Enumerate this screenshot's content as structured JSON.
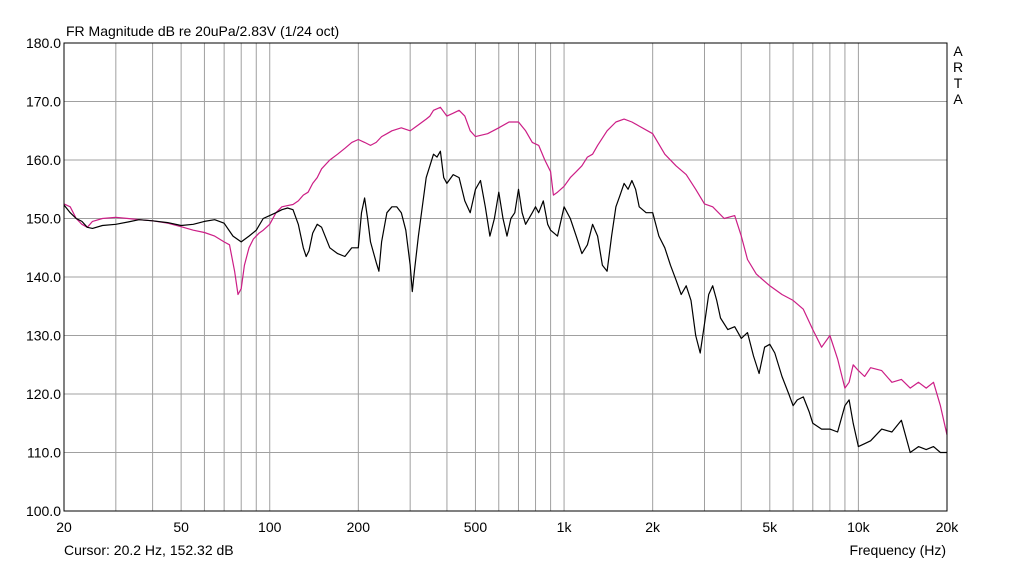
{
  "app": {
    "title": "FR Magnitude dB re 20uPa/2.83V (1/24 oct)",
    "watermark": [
      "A",
      "R",
      "T",
      "A"
    ],
    "cursor_readout": "Cursor: 20.2 Hz, 152.32 dB",
    "x_axis_label": "Frequency (Hz)"
  },
  "colors": {
    "background": "#ffffff",
    "grid": "#a0a0a0",
    "frame": "#000000",
    "series_black": "#000000",
    "series_magenta": "#cc1e86"
  },
  "chart_data": {
    "type": "line",
    "title": "FR Magnitude dB re 20uPa/2.83V (1/24 oct)",
    "xlabel": "Frequency (Hz)",
    "ylabel": "",
    "xscale": "log",
    "xlim": [
      20,
      20000
    ],
    "ylim": [
      100,
      180
    ],
    "grid": true,
    "x_ticks": [
      20,
      50,
      100,
      200,
      500,
      1000,
      2000,
      5000,
      10000,
      20000
    ],
    "x_tick_labels": [
      "20",
      "50",
      "100",
      "200",
      "500",
      "1k",
      "2k",
      "5k",
      "10k",
      "20k"
    ],
    "y_ticks": [
      100,
      110,
      120,
      130,
      140,
      150,
      160,
      170,
      180
    ],
    "y_tick_labels": [
      "100.0",
      "110.0",
      "120.0",
      "130.0",
      "140.0",
      "150.0",
      "160.0",
      "170.0",
      "180.0"
    ],
    "series": [
      {
        "color": "#cc1e86",
        "points": [
          [
            20,
            152.5
          ],
          [
            21,
            152
          ],
          [
            22,
            150
          ],
          [
            23,
            149
          ],
          [
            24,
            148.5
          ],
          [
            25,
            149.5
          ],
          [
            27,
            150
          ],
          [
            30,
            150.2
          ],
          [
            33,
            150
          ],
          [
            36,
            149.8
          ],
          [
            40,
            149.6
          ],
          [
            45,
            149.2
          ],
          [
            50,
            148.6
          ],
          [
            55,
            148
          ],
          [
            60,
            147.6
          ],
          [
            65,
            147
          ],
          [
            70,
            146
          ],
          [
            73,
            145.5
          ],
          [
            76,
            141
          ],
          [
            78,
            137
          ],
          [
            80,
            138
          ],
          [
            82,
            142
          ],
          [
            85,
            145
          ],
          [
            88,
            146.5
          ],
          [
            92,
            147.5
          ],
          [
            95,
            148
          ],
          [
            100,
            149
          ],
          [
            105,
            151
          ],
          [
            110,
            152
          ],
          [
            115,
            152.2
          ],
          [
            120,
            152.4
          ],
          [
            125,
            153
          ],
          [
            130,
            154
          ],
          [
            135,
            154.5
          ],
          [
            140,
            156
          ],
          [
            145,
            157
          ],
          [
            150,
            158.5
          ],
          [
            160,
            160
          ],
          [
            170,
            161
          ],
          [
            180,
            162
          ],
          [
            190,
            163
          ],
          [
            200,
            163.5
          ],
          [
            210,
            163
          ],
          [
            220,
            162.5
          ],
          [
            230,
            163
          ],
          [
            240,
            164
          ],
          [
            250,
            164.5
          ],
          [
            260,
            165
          ],
          [
            280,
            165.5
          ],
          [
            300,
            165
          ],
          [
            320,
            166
          ],
          [
            330,
            166.5
          ],
          [
            340,
            167
          ],
          [
            350,
            167.5
          ],
          [
            360,
            168.5
          ],
          [
            380,
            169
          ],
          [
            400,
            167.5
          ],
          [
            420,
            168
          ],
          [
            440,
            168.5
          ],
          [
            460,
            167.5
          ],
          [
            480,
            165
          ],
          [
            500,
            164
          ],
          [
            550,
            164.5
          ],
          [
            600,
            165.5
          ],
          [
            650,
            166.5
          ],
          [
            700,
            166.5
          ],
          [
            740,
            165
          ],
          [
            780,
            163
          ],
          [
            820,
            162.5
          ],
          [
            860,
            160
          ],
          [
            900,
            158
          ],
          [
            920,
            154
          ],
          [
            950,
            154.5
          ],
          [
            1000,
            155.5
          ],
          [
            1050,
            157
          ],
          [
            1100,
            158
          ],
          [
            1150,
            159
          ],
          [
            1200,
            160.5
          ],
          [
            1250,
            161
          ],
          [
            1300,
            162.5
          ],
          [
            1400,
            165
          ],
          [
            1500,
            166.5
          ],
          [
            1600,
            167
          ],
          [
            1700,
            166.5
          ],
          [
            1800,
            165.8
          ],
          [
            2000,
            164.5
          ],
          [
            2200,
            161
          ],
          [
            2400,
            159
          ],
          [
            2600,
            157.5
          ],
          [
            2800,
            155
          ],
          [
            3000,
            152.5
          ],
          [
            3200,
            152
          ],
          [
            3500,
            150
          ],
          [
            3800,
            150.5
          ],
          [
            4000,
            147
          ],
          [
            4200,
            143
          ],
          [
            4500,
            140.5
          ],
          [
            5000,
            138.5
          ],
          [
            5500,
            137
          ],
          [
            6000,
            136
          ],
          [
            6500,
            134.5
          ],
          [
            7000,
            131
          ],
          [
            7500,
            128
          ],
          [
            8000,
            130
          ],
          [
            8500,
            126
          ],
          [
            9000,
            121
          ],
          [
            9300,
            122
          ],
          [
            9600,
            125
          ],
          [
            10000,
            124
          ],
          [
            10500,
            123
          ],
          [
            11000,
            124.5
          ],
          [
            12000,
            124
          ],
          [
            13000,
            122
          ],
          [
            14000,
            122.5
          ],
          [
            15000,
            121
          ],
          [
            16000,
            122
          ],
          [
            17000,
            121
          ],
          [
            18000,
            122
          ],
          [
            19000,
            118
          ],
          [
            20000,
            113
          ]
        ]
      },
      {
        "color": "#000000",
        "points": [
          [
            20,
            152.3
          ],
          [
            21,
            151
          ],
          [
            22,
            150
          ],
          [
            23,
            149.5
          ],
          [
            24,
            148.5
          ],
          [
            25,
            148.3
          ],
          [
            27,
            148.8
          ],
          [
            30,
            149
          ],
          [
            33,
            149.4
          ],
          [
            36,
            149.8
          ],
          [
            40,
            149.6
          ],
          [
            45,
            149.3
          ],
          [
            50,
            148.8
          ],
          [
            55,
            149
          ],
          [
            60,
            149.5
          ],
          [
            65,
            149.8
          ],
          [
            70,
            149.2
          ],
          [
            75,
            147
          ],
          [
            80,
            146
          ],
          [
            85,
            147
          ],
          [
            90,
            148
          ],
          [
            95,
            150
          ],
          [
            100,
            150.5
          ],
          [
            105,
            151
          ],
          [
            110,
            151.5
          ],
          [
            115,
            151.8
          ],
          [
            120,
            151.5
          ],
          [
            125,
            149
          ],
          [
            130,
            145
          ],
          [
            133,
            143.5
          ],
          [
            136,
            144.5
          ],
          [
            140,
            147.5
          ],
          [
            145,
            149
          ],
          [
            150,
            148.5
          ],
          [
            160,
            145
          ],
          [
            170,
            144
          ],
          [
            180,
            143.5
          ],
          [
            190,
            145
          ],
          [
            200,
            145
          ],
          [
            205,
            151
          ],
          [
            210,
            153.5
          ],
          [
            215,
            150
          ],
          [
            220,
            146
          ],
          [
            230,
            142.5
          ],
          [
            235,
            141
          ],
          [
            240,
            146
          ],
          [
            250,
            151
          ],
          [
            260,
            152
          ],
          [
            270,
            152
          ],
          [
            280,
            151
          ],
          [
            290,
            148
          ],
          [
            300,
            142
          ],
          [
            305,
            137.5
          ],
          [
            310,
            141
          ],
          [
            320,
            147
          ],
          [
            330,
            152
          ],
          [
            340,
            157
          ],
          [
            350,
            159
          ],
          [
            360,
            161
          ],
          [
            370,
            160.5
          ],
          [
            380,
            161.5
          ],
          [
            390,
            157
          ],
          [
            400,
            156
          ],
          [
            420,
            157.5
          ],
          [
            440,
            157
          ],
          [
            460,
            153
          ],
          [
            480,
            151
          ],
          [
            500,
            155
          ],
          [
            520,
            156.5
          ],
          [
            540,
            152
          ],
          [
            560,
            147
          ],
          [
            580,
            150
          ],
          [
            600,
            154.5
          ],
          [
            620,
            150
          ],
          [
            640,
            147
          ],
          [
            660,
            150
          ],
          [
            680,
            151
          ],
          [
            700,
            155
          ],
          [
            720,
            151
          ],
          [
            740,
            149
          ],
          [
            780,
            151
          ],
          [
            800,
            152
          ],
          [
            820,
            151
          ],
          [
            850,
            153
          ],
          [
            880,
            149
          ],
          [
            900,
            148
          ],
          [
            950,
            147
          ],
          [
            1000,
            152
          ],
          [
            1050,
            150
          ],
          [
            1100,
            147
          ],
          [
            1150,
            144
          ],
          [
            1200,
            145.5
          ],
          [
            1250,
            149
          ],
          [
            1300,
            147
          ],
          [
            1350,
            142
          ],
          [
            1400,
            141
          ],
          [
            1450,
            147
          ],
          [
            1500,
            152
          ],
          [
            1550,
            154
          ],
          [
            1600,
            156
          ],
          [
            1650,
            155
          ],
          [
            1700,
            156.5
          ],
          [
            1750,
            155
          ],
          [
            1800,
            152
          ],
          [
            1900,
            151
          ],
          [
            2000,
            151
          ],
          [
            2100,
            147
          ],
          [
            2200,
            145
          ],
          [
            2300,
            142
          ],
          [
            2400,
            139.5
          ],
          [
            2500,
            137
          ],
          [
            2600,
            138.5
          ],
          [
            2700,
            136
          ],
          [
            2800,
            130
          ],
          [
            2900,
            127
          ],
          [
            3000,
            132
          ],
          [
            3100,
            137
          ],
          [
            3200,
            138.5
          ],
          [
            3300,
            136
          ],
          [
            3400,
            133
          ],
          [
            3600,
            131
          ],
          [
            3800,
            131.5
          ],
          [
            4000,
            129.5
          ],
          [
            4200,
            130.5
          ],
          [
            4400,
            126.5
          ],
          [
            4600,
            123.5
          ],
          [
            4800,
            128
          ],
          [
            5000,
            128.5
          ],
          [
            5200,
            127
          ],
          [
            5500,
            123
          ],
          [
            5800,
            120
          ],
          [
            6000,
            118
          ],
          [
            6200,
            119
          ],
          [
            6500,
            119.5
          ],
          [
            6800,
            117
          ],
          [
            7000,
            115
          ],
          [
            7500,
            114
          ],
          [
            8000,
            114
          ],
          [
            8500,
            113.5
          ],
          [
            9000,
            118
          ],
          [
            9300,
            119
          ],
          [
            9600,
            115
          ],
          [
            10000,
            111
          ],
          [
            10500,
            111.5
          ],
          [
            11000,
            112
          ],
          [
            12000,
            114
          ],
          [
            13000,
            113.5
          ],
          [
            14000,
            115.5
          ],
          [
            15000,
            110
          ],
          [
            16000,
            111
          ],
          [
            17000,
            110.5
          ],
          [
            18000,
            111
          ],
          [
            19000,
            110
          ],
          [
            20000,
            110
          ]
        ]
      }
    ]
  }
}
